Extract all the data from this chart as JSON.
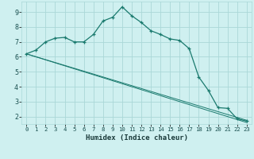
{
  "xlabel": "Humidex (Indice chaleur)",
  "background_color": "#cff0f0",
  "grid_color": "#aad8d8",
  "line_color": "#1a7a6e",
  "xlim": [
    -0.5,
    23.5
  ],
  "ylim": [
    1.5,
    9.7
  ],
  "yticks": [
    2,
    3,
    4,
    5,
    6,
    7,
    8,
    9
  ],
  "xticks": [
    0,
    1,
    2,
    3,
    4,
    5,
    6,
    7,
    8,
    9,
    10,
    11,
    12,
    13,
    14,
    15,
    16,
    17,
    18,
    19,
    20,
    21,
    22,
    23
  ],
  "series0_x": [
    0,
    1,
    2,
    3,
    4,
    5,
    6,
    7,
    8,
    9,
    10,
    11,
    12,
    13,
    14,
    15,
    16,
    17,
    18,
    19,
    20,
    21,
    22,
    23
  ],
  "series0_y": [
    6.2,
    6.45,
    7.0,
    7.25,
    7.3,
    7.0,
    7.0,
    7.5,
    8.4,
    8.65,
    9.35,
    8.75,
    8.3,
    7.75,
    7.5,
    7.2,
    7.1,
    6.55,
    4.65,
    3.75,
    2.6,
    2.55,
    1.85,
    1.7
  ],
  "series1_x": [
    0,
    23
  ],
  "series1_y": [
    6.2,
    1.75
  ],
  "series2_x": [
    0,
    23
  ],
  "series2_y": [
    6.2,
    1.6
  ]
}
